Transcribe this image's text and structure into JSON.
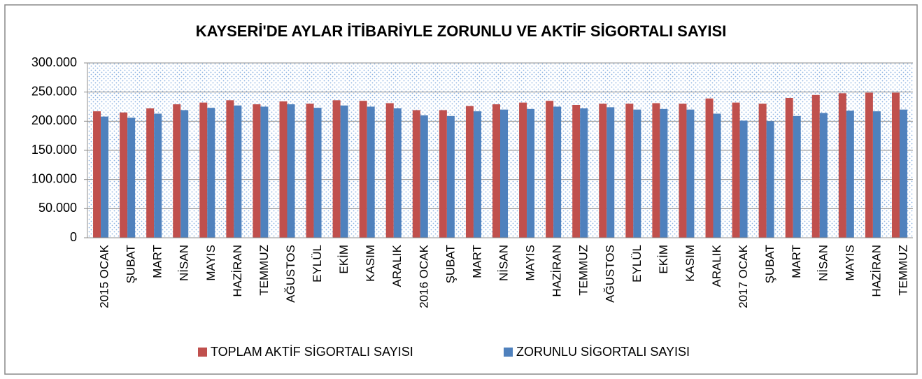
{
  "chart_data": {
    "type": "bar",
    "title": "KAYSERİ'DE AYLAR İTİBARİYLE ZORUNLU VE AKTİF SİGORTALI SAYISI",
    "categories": [
      "2015 OCAK",
      "ŞUBAT",
      "MART",
      "NİSAN",
      "MAYIS",
      "HAZİRAN",
      "TEMMUZ",
      "AĞUSTOS",
      "EYLÜL",
      "EKİM",
      "KASIM",
      "ARALIK",
      "2016 OCAK",
      "ŞUBAT",
      "MART",
      "NİSAN",
      "MAYIS",
      "HAZİRAN",
      "TEMMUZ",
      "AĞUSTOS",
      "EYLÜL",
      "EKİM",
      "KASIM",
      "ARALIK",
      "2017 OCAK",
      "ŞUBAT",
      "MART",
      "NİSAN",
      "MAYIS",
      "HAZİRAN",
      "TEMMUZ"
    ],
    "series": [
      {
        "name": "TOPLAM AKTİF SİGORTALI SAYISI",
        "color": "#c0504d",
        "values": [
          217000,
          215000,
          222000,
          229000,
          232000,
          236000,
          229000,
          234000,
          230000,
          236000,
          235000,
          231000,
          219000,
          219000,
          226000,
          229000,
          232000,
          235000,
          228000,
          230000,
          230000,
          231000,
          230000,
          239000,
          232000,
          230000,
          240000,
          245000,
          248000,
          249000,
          249000
        ]
      },
      {
        "name": "ZORUNLU SİGORTALI SAYISI",
        "color": "#4f81bd",
        "values": [
          208000,
          206000,
          213000,
          219000,
          223000,
          227000,
          225000,
          229000,
          223000,
          227000,
          225000,
          222000,
          210000,
          209000,
          217000,
          220000,
          221000,
          225000,
          222000,
          224000,
          220000,
          221000,
          220000,
          213000,
          201000,
          200000,
          209000,
          214000,
          218000,
          217000,
          220000
        ]
      }
    ],
    "ylim": [
      0,
      300000
    ],
    "yticks": [
      0,
      {
        "value": 50000,
        "label": "50.000"
      },
      {
        "value": 100000,
        "label": "100.000"
      },
      {
        "value": 150000,
        "label": "150.000"
      },
      {
        "value": 200000,
        "label": "200.000"
      },
      {
        "value": 250000,
        "label": "250.000"
      },
      {
        "value": 300000,
        "label": "300.000"
      }
    ],
    "grid": true,
    "legend": "bottom"
  }
}
